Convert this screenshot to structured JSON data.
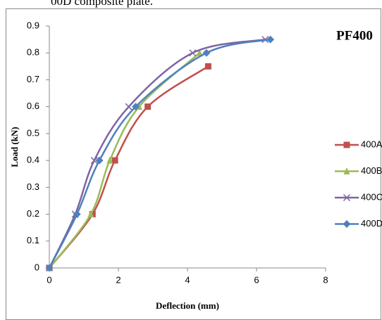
{
  "caption": "00D composite plate.",
  "chart_data": {
    "type": "line",
    "title": "PF400",
    "xlabel": "Deflection (mm)",
    "ylabel": "Load (kN)",
    "xlim": [
      0,
      8
    ],
    "xticks": [
      0,
      2,
      4,
      6,
      8
    ],
    "ylim": [
      0,
      0.9
    ],
    "yticks": [
      0,
      0.1,
      0.2,
      0.3,
      0.4,
      0.5,
      0.6,
      0.7,
      0.8,
      0.9
    ],
    "grid": false,
    "legend": "right",
    "series": [
      {
        "name": "400A",
        "color": "#c0504d",
        "marker": "square",
        "x": [
          0,
          1.25,
          1.9,
          2.85,
          4.6
        ],
        "values": [
          0,
          0.2,
          0.4,
          0.6,
          0.75
        ]
      },
      {
        "name": "400B",
        "color": "#9bbb59",
        "marker": "triangle",
        "x": [
          0,
          1.2,
          1.75,
          2.6,
          4.35
        ],
        "values": [
          0,
          0.2,
          0.4,
          0.6,
          0.8
        ]
      },
      {
        "name": "400C",
        "color": "#8064a2",
        "marker": "x",
        "x": [
          0,
          0.75,
          1.3,
          2.3,
          4.15,
          6.25
        ],
        "values": [
          0,
          0.2,
          0.4,
          0.6,
          0.8,
          0.85
        ]
      },
      {
        "name": "400D",
        "color": "#4f81bd",
        "marker": "diamond",
        "x": [
          0,
          0.8,
          1.45,
          2.5,
          4.55,
          6.4
        ],
        "values": [
          0,
          0.2,
          0.4,
          0.6,
          0.8,
          0.85
        ]
      }
    ]
  }
}
